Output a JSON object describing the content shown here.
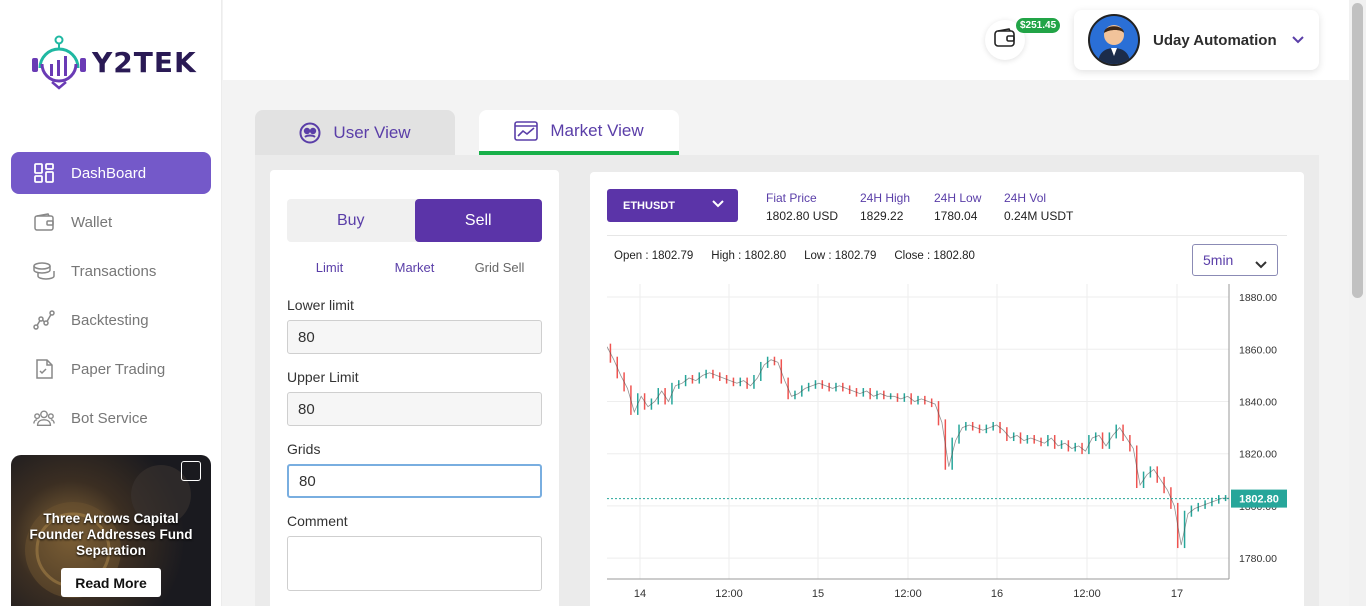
{
  "brand": {
    "name": "Y2TEK"
  },
  "sidebar": {
    "items": [
      {
        "label": "DashBoard",
        "icon": "dashboard-icon",
        "active": true
      },
      {
        "label": "Wallet",
        "icon": "wallet-icon"
      },
      {
        "label": "Transactions",
        "icon": "coins-icon"
      },
      {
        "label": "Backtesting",
        "icon": "graph-icon"
      },
      {
        "label": "Paper Trading",
        "icon": "document-icon"
      },
      {
        "label": "Bot Service",
        "icon": "users-icon"
      }
    ],
    "news": {
      "title": "Three Arrows Capital Founder Addresses Fund Separation",
      "button": "Read More"
    }
  },
  "header": {
    "balance": "$251.45",
    "user_name": "Uday Automation"
  },
  "tabs": [
    {
      "label": "User View",
      "active": false
    },
    {
      "label": "Market View",
      "active": true
    }
  ],
  "order": {
    "buy_label": "Buy",
    "sell_label": "Sell",
    "types": [
      "Limit",
      "Market",
      "Grid Sell"
    ],
    "fields": {
      "lower_limit": {
        "label": "Lower limit",
        "value": "80"
      },
      "upper_limit": {
        "label": "Upper Limit",
        "value": "80"
      },
      "grids": {
        "label": "Grids",
        "value": "80"
      },
      "comment": {
        "label": "Comment",
        "value": ""
      }
    }
  },
  "market": {
    "pair": "ETHUSDT",
    "stats": [
      {
        "label": "Fiat Price",
        "value": "1802.80 USD"
      },
      {
        "label": "24H High",
        "value": "1829.22"
      },
      {
        "label": "24H Low",
        "value": "1780.04"
      },
      {
        "label": "24H Vol",
        "value": "0.24M USDT"
      }
    ],
    "ohlc": {
      "open": "Open : 1802.79",
      "high": "High : 1802.80",
      "low": "Low : 1802.79",
      "close": "Close : 1802.80"
    },
    "interval": "5min"
  },
  "colors": {
    "accent": "#5b34a8",
    "up": "#26a69a",
    "down": "#ef5350",
    "active_tab": "#18b04a"
  },
  "chart_data": {
    "type": "line",
    "title": "",
    "xlabel": "",
    "ylabel": "",
    "x_ticks": [
      "14",
      "12:00",
      "15",
      "12:00",
      "16",
      "12:00",
      "17"
    ],
    "y_ticks": [
      "1880.00",
      "1860.00",
      "1840.00",
      "1820.00",
      "1800.00",
      "1780.00"
    ],
    "ylim": [
      1772,
      1885
    ],
    "current_price": "1802.80",
    "series": [
      {
        "values": [
          1861,
          1856,
          1850,
          1845,
          1836,
          1842,
          1838,
          1840,
          1844,
          1840,
          1846,
          1847,
          1849,
          1848,
          1850,
          1851,
          1850,
          1849,
          1848,
          1847,
          1848,
          1846,
          1849,
          1854,
          1856,
          1855,
          1848,
          1842,
          1843,
          1845,
          1846,
          1847,
          1846,
          1845,
          1846,
          1845,
          1844,
          1843,
          1844,
          1842,
          1843,
          1842,
          1842,
          1841,
          1842,
          1840,
          1841,
          1840,
          1839,
          1832,
          1815,
          1825,
          1830,
          1831,
          1830,
          1829,
          1830,
          1831,
          1829,
          1826,
          1827,
          1825,
          1826,
          1825,
          1824,
          1826,
          1823,
          1824,
          1822,
          1823,
          1821,
          1826,
          1827,
          1823,
          1827,
          1830,
          1826,
          1822,
          1808,
          1812,
          1814,
          1810,
          1806,
          1800,
          1785,
          1797,
          1799,
          1800,
          1801,
          1802,
          1803,
          1803
        ]
      }
    ],
    "grid": true
  }
}
